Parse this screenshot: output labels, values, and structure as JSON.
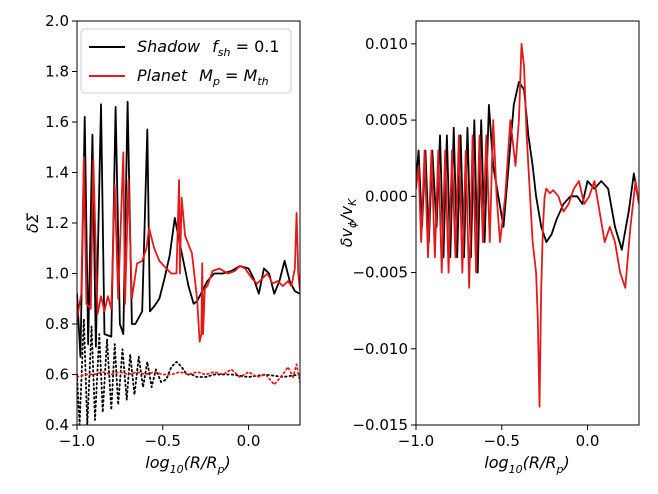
{
  "chart_data": [
    {
      "type": "line",
      "panel": "left",
      "xlabel": "log10(R/Rp)",
      "ylabel": "δΣ",
      "xlim": [
        -1.0,
        0.3
      ],
      "ylim": [
        0.4,
        2.0
      ],
      "xticks": [
        -1.0,
        -0.5,
        0.0
      ],
      "xtick_labels": [
        "−1.0",
        "−0.5",
        "0.0"
      ],
      "yticks": [
        0.4,
        0.6,
        0.8,
        1.0,
        1.2,
        1.4,
        1.6,
        1.8,
        2.0
      ],
      "ytick_labels": [
        "0.4",
        "0.6",
        "0.8",
        "1.0",
        "1.2",
        "1.4",
        "1.6",
        "1.8",
        "2.0"
      ],
      "legend": {
        "location": "top-right",
        "entries": [
          {
            "series": "shadow",
            "label": "Shadow  f_sh = 0.1",
            "text_main": "Shadow",
            "text_var": "f",
            "text_sub": "sh",
            "text_rest": " = 0.1"
          },
          {
            "series": "planet",
            "label": "Planet  M_p = M_th",
            "text_main": "Planet",
            "text_var": "M",
            "text_sub": "p",
            "text_eq": " = ",
            "text_var2": "M",
            "text_sub2": "th"
          }
        ]
      },
      "series": [
        {
          "name": "shadow",
          "color": "#000000",
          "style": "solid",
          "x": [
            -1.0,
            -0.98,
            -0.955,
            -0.935,
            -0.91,
            -0.89,
            -0.86,
            -0.84,
            -0.8,
            -0.775,
            -0.75,
            -0.73,
            -0.705,
            -0.68,
            -0.66,
            -0.62,
            -0.59,
            -0.575,
            -0.55,
            -0.52,
            -0.49,
            -0.46,
            -0.43,
            -0.41,
            -0.38,
            -0.35,
            -0.32,
            -0.3,
            -0.27,
            -0.24,
            -0.2,
            -0.15,
            -0.1,
            -0.05,
            0.0,
            0.03,
            0.06,
            0.09,
            0.12,
            0.15,
            0.18,
            0.21,
            0.24,
            0.27,
            0.3
          ],
          "y": [
            0.92,
            0.67,
            1.62,
            0.72,
            1.55,
            0.71,
            1.67,
            0.76,
            0.75,
            1.66,
            0.8,
            0.76,
            1.68,
            0.8,
            0.8,
            0.85,
            1.57,
            0.85,
            0.87,
            0.9,
            0.98,
            1.07,
            1.22,
            1.15,
            1.05,
            0.95,
            0.88,
            0.89,
            0.93,
            0.97,
            1.0,
            1.0,
            1.01,
            1.03,
            1.02,
            0.98,
            0.92,
            1.02,
            1.0,
            0.92,
            0.97,
            1.05,
            0.97,
            0.93,
            0.92
          ]
        },
        {
          "name": "planet",
          "color": "#e31a1c",
          "style": "solid",
          "x": [
            -1.0,
            -0.975,
            -0.96,
            -0.945,
            -0.92,
            -0.905,
            -0.88,
            -0.86,
            -0.84,
            -0.82,
            -0.8,
            -0.78,
            -0.76,
            -0.73,
            -0.72,
            -0.7,
            -0.68,
            -0.65,
            -0.62,
            -0.595,
            -0.58,
            -0.55,
            -0.52,
            -0.48,
            -0.45,
            -0.42,
            -0.405,
            -0.4,
            -0.39,
            -0.37,
            -0.33,
            -0.3,
            -0.285,
            -0.275,
            -0.27,
            -0.265,
            -0.255,
            -0.24,
            -0.21,
            -0.17,
            -0.12,
            -0.08,
            -0.05,
            -0.02,
            0.02,
            0.05,
            0.08,
            0.11,
            0.14,
            0.17,
            0.2,
            0.23,
            0.25,
            0.27,
            0.28,
            0.29,
            0.3
          ],
          "y": [
            0.82,
            0.92,
            1.46,
            0.88,
            0.86,
            1.45,
            0.84,
            0.91,
            0.85,
            0.91,
            0.86,
            1.35,
            0.9,
            1.48,
            0.88,
            1.37,
            0.9,
            1.04,
            1.05,
            1.1,
            1.18,
            1.1,
            1.05,
            1.02,
            1.0,
            1.0,
            1.37,
            1.0,
            1.3,
            1.15,
            1.08,
            0.9,
            0.73,
            0.76,
            1.04,
            0.76,
            0.94,
            0.95,
            1.01,
            1.02,
            1.0,
            1.01,
            1.03,
            1.02,
            0.98,
            0.96,
            0.98,
            1.0,
            0.96,
            0.97,
            0.95,
            0.97,
            0.95,
            1.02,
            1.24,
            1.0,
            0.93
          ]
        },
        {
          "name": "shadow-dotted",
          "color": "#000000",
          "style": "dotted",
          "x": [
            -1.0,
            -0.985,
            -0.96,
            -0.94,
            -0.915,
            -0.895,
            -0.87,
            -0.85,
            -0.825,
            -0.8,
            -0.78,
            -0.76,
            -0.735,
            -0.71,
            -0.69,
            -0.665,
            -0.64,
            -0.615,
            -0.59,
            -0.565,
            -0.54,
            -0.51,
            -0.48,
            -0.45,
            -0.42,
            -0.39,
            -0.36,
            -0.33,
            -0.3,
            -0.25,
            -0.2,
            -0.1,
            0.0,
            0.1,
            0.2,
            0.3
          ],
          "y": [
            0.6,
            0.4,
            0.82,
            0.4,
            0.79,
            0.42,
            0.76,
            0.45,
            0.74,
            0.46,
            0.72,
            0.48,
            0.7,
            0.5,
            0.68,
            0.52,
            0.67,
            0.55,
            0.65,
            0.55,
            0.62,
            0.57,
            0.58,
            0.63,
            0.65,
            0.63,
            0.6,
            0.6,
            0.59,
            0.59,
            0.6,
            0.6,
            0.59,
            0.6,
            0.59,
            0.6
          ]
        },
        {
          "name": "planet-dotted",
          "color": "#e31a1c",
          "style": "dotted",
          "x": [
            -1.0,
            -0.95,
            -0.9,
            -0.85,
            -0.8,
            -0.75,
            -0.7,
            -0.65,
            -0.6,
            -0.55,
            -0.5,
            -0.45,
            -0.4,
            -0.35,
            -0.3,
            -0.25,
            -0.2,
            -0.15,
            -0.1,
            -0.05,
            0.0,
            0.05,
            0.1,
            0.15,
            0.2,
            0.23,
            0.26,
            0.28,
            0.3
          ],
          "y": [
            0.59,
            0.6,
            0.6,
            0.61,
            0.6,
            0.61,
            0.6,
            0.61,
            0.6,
            0.61,
            0.6,
            0.6,
            0.61,
            0.6,
            0.61,
            0.6,
            0.61,
            0.6,
            0.62,
            0.59,
            0.61,
            0.59,
            0.6,
            0.56,
            0.6,
            0.63,
            0.59,
            0.64,
            0.57
          ]
        }
      ]
    },
    {
      "type": "line",
      "panel": "right",
      "xlabel": "log10(R/Rp)",
      "ylabel": "δvφ/vK",
      "xlim": [
        -1.0,
        0.3
      ],
      "ylim": [
        -0.015,
        0.0115
      ],
      "xticks": [
        -1.0,
        -0.5,
        0.0
      ],
      "xtick_labels": [
        "−1.0",
        "−0.5",
        "0.0"
      ],
      "yticks": [
        -0.015,
        -0.01,
        -0.005,
        0.0,
        0.005,
        0.01
      ],
      "ytick_labels": [
        "−0.015",
        "−0.010",
        "−0.005",
        "0.000",
        "0.005",
        "0.010"
      ],
      "series": [
        {
          "name": "shadow",
          "color": "#000000",
          "style": "solid",
          "x": [
            -1.0,
            -0.985,
            -0.965,
            -0.945,
            -0.925,
            -0.905,
            -0.88,
            -0.86,
            -0.84,
            -0.82,
            -0.8,
            -0.78,
            -0.76,
            -0.74,
            -0.72,
            -0.7,
            -0.68,
            -0.66,
            -0.64,
            -0.62,
            -0.6,
            -0.575,
            -0.55,
            -0.52,
            -0.49,
            -0.46,
            -0.43,
            -0.4,
            -0.37,
            -0.345,
            -0.32,
            -0.3,
            -0.27,
            -0.24,
            -0.21,
            -0.18,
            -0.14,
            -0.1,
            -0.06,
            -0.03,
            0.0,
            0.04,
            0.08,
            0.12,
            0.16,
            0.2,
            0.24,
            0.27,
            0.3
          ],
          "y": [
            0.001,
            0.003,
            -0.002,
            0.003,
            -0.003,
            0.003,
            -0.002,
            0.004,
            -0.004,
            0.004,
            -0.004,
            0.0045,
            -0.004,
            0.004,
            -0.004,
            0.0045,
            -0.004,
            0.005,
            -0.005,
            0.005,
            -0.003,
            0.006,
            0.002,
            0.0,
            -0.002,
            0.002,
            0.006,
            0.0075,
            0.007,
            0.004,
            0.002,
            0.0,
            -0.002,
            -0.003,
            -0.0025,
            -0.0015,
            -0.0005,
            0.0,
            0.0,
            -0.0005,
            0.001,
            0.0005,
            0.001,
            0.0005,
            -0.002,
            -0.0035,
            -0.001,
            0.0015,
            -0.0005
          ]
        },
        {
          "name": "planet",
          "color": "#e31a1c",
          "style": "solid",
          "x": [
            -1.0,
            -0.985,
            -0.97,
            -0.95,
            -0.93,
            -0.91,
            -0.89,
            -0.87,
            -0.85,
            -0.83,
            -0.81,
            -0.79,
            -0.77,
            -0.75,
            -0.73,
            -0.71,
            -0.69,
            -0.67,
            -0.65,
            -0.63,
            -0.61,
            -0.59,
            -0.57,
            -0.55,
            -0.53,
            -0.51,
            -0.48,
            -0.45,
            -0.42,
            -0.4,
            -0.385,
            -0.37,
            -0.355,
            -0.34,
            -0.33,
            -0.32,
            -0.31,
            -0.3,
            -0.29,
            -0.28,
            -0.27,
            -0.26,
            -0.25,
            -0.24,
            -0.22,
            -0.2,
            -0.17,
            -0.14,
            -0.11,
            -0.08,
            -0.05,
            -0.02,
            0.01,
            0.04,
            0.07,
            0.1,
            0.13,
            0.16,
            0.19,
            0.22,
            0.25,
            0.28,
            0.3
          ],
          "y": [
            0.0005,
            0.002,
            -0.003,
            0.003,
            -0.004,
            0.003,
            -0.004,
            0.003,
            -0.005,
            0.003,
            -0.005,
            0.003,
            -0.004,
            0.004,
            -0.005,
            0.003,
            -0.006,
            0.004,
            -0.005,
            0.004,
            -0.003,
            0.004,
            -0.003,
            0.005,
            0.0,
            -0.003,
            0.0,
            0.005,
            0.002,
            0.005,
            0.01,
            0.0085,
            0.004,
            0.001,
            -0.001,
            -0.003,
            -0.004,
            -0.005,
            -0.008,
            -0.0138,
            -0.006,
            -0.002,
            0.0,
            0.0005,
            0.0002,
            0.0004,
            0.0,
            -0.001,
            -0.0005,
            0.0005,
            0.001,
            -0.0005,
            0.0,
            0.001,
            -0.001,
            -0.003,
            -0.002,
            -0.003,
            -0.005,
            -0.006,
            -0.002,
            0.001,
            -0.0005
          ]
        }
      ]
    }
  ]
}
